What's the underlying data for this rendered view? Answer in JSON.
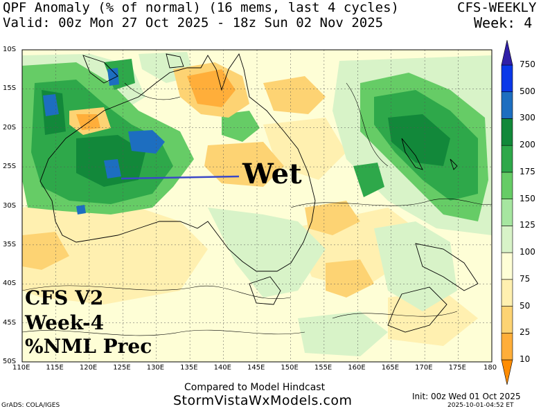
{
  "header": {
    "title_line1": "QPF Anomaly (% of normal) (16 mems, last 4 cycles)",
    "title_line2": "Valid: 00z Mon 27 Oct 2025 - 18z Sun 02 Nov 2025",
    "model": "CFS-WEEKLY",
    "week": "Week: 4"
  },
  "map": {
    "lat_labels": [
      "10S",
      "15S",
      "20S",
      "25S",
      "30S",
      "35S",
      "40S",
      "45S",
      "50S"
    ],
    "lon_labels": [
      "110E",
      "115E",
      "120E",
      "125E",
      "130E",
      "135E",
      "140E",
      "145E",
      "150E",
      "155E",
      "160E",
      "165E",
      "170E",
      "175E",
      "180"
    ],
    "region": "Australia / New Zealand"
  },
  "annotation": {
    "text": "Wet",
    "color": "#3a48c8"
  },
  "overlay_text": {
    "line1": "CFS V2",
    "line2": "Week-4",
    "line3": "%NML Prec"
  },
  "colorbar": {
    "labels": [
      "10",
      "25",
      "50",
      "75",
      "100",
      "125",
      "150",
      "175",
      "200",
      "300",
      "500",
      "750"
    ],
    "colors": [
      "#ff8c00",
      "#ffae3a",
      "#fdd373",
      "#fff0b0",
      "#fefed6",
      "#d8f3c8",
      "#a6e6a0",
      "#66cc66",
      "#2ea84a",
      "#12883a",
      "#1d6ec0",
      "#0a38e8",
      "#3020a8"
    ]
  },
  "footer": {
    "compared": "Compared to Model Hindcast",
    "site": "StormVistaWxModels.com",
    "credit": "GrADS: COLA/IGES",
    "init": "Init: 00z Wed 01 Oct 2025",
    "timestamp": "2025-10-01-04:52 ET"
  }
}
